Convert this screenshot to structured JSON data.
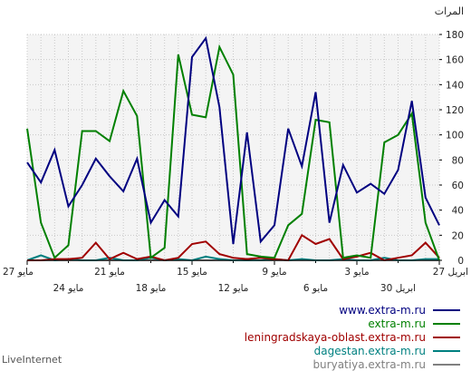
{
  "chart_data": {
    "type": "line",
    "ylabel": "المرات",
    "ylim": [
      0,
      180
    ],
    "yticks": [
      0,
      20,
      40,
      60,
      80,
      100,
      120,
      140,
      160,
      180
    ],
    "x_count": 31,
    "x_tick_labels_top": [
      {
        "index": 0,
        "text": "27 مايو"
      },
      {
        "index": 6,
        "text": "21 مايو"
      },
      {
        "index": 12,
        "text": "15 مايو"
      },
      {
        "index": 18,
        "text": "9 مايو"
      },
      {
        "index": 24,
        "text": "3 مايو"
      },
      {
        "index": 30,
        "text": "27 ابريل"
      }
    ],
    "x_tick_labels_bottom": [
      {
        "index": 3,
        "text": "24 مايو"
      },
      {
        "index": 9,
        "text": "18 مايو"
      },
      {
        "index": 15,
        "text": "12 مايو"
      },
      {
        "index": 21,
        "text": "6 مايو"
      },
      {
        "index": 27,
        "text": "30 ابريل"
      }
    ],
    "grid": true,
    "series": [
      {
        "name": "www.extra-m.ru",
        "color": "#000080",
        "values": [
          78,
          62,
          88,
          43,
          60,
          81,
          67,
          55,
          81,
          30,
          48,
          35,
          162,
          177,
          122,
          13,
          102,
          15,
          28,
          105,
          75,
          134,
          30,
          76,
          54,
          61,
          53,
          72,
          127,
          50,
          28
        ]
      },
      {
        "name": "extra-m.ru",
        "color": "#008000",
        "values": [
          105,
          30,
          2,
          12,
          103,
          103,
          95,
          135,
          115,
          2,
          10,
          164,
          116,
          114,
          170,
          148,
          5,
          3,
          2,
          28,
          37,
          112,
          110,
          2,
          4,
          2,
          94,
          100,
          117,
          30,
          0
        ]
      },
      {
        "name": "leningradskaya-oblast.extra-m.ru",
        "color": "#a00000",
        "values": [
          0,
          0,
          1,
          1,
          2,
          14,
          1,
          6,
          1,
          3,
          0,
          2,
          13,
          15,
          5,
          2,
          1,
          2,
          1,
          0,
          20,
          13,
          17,
          1,
          3,
          6,
          0,
          2,
          4,
          14,
          2
        ]
      },
      {
        "name": "dagestan.extra-m.ru",
        "color": "#008080",
        "values": [
          0,
          4,
          0,
          1,
          0,
          0,
          2,
          0,
          0,
          2,
          0,
          1,
          0,
          3,
          1,
          0,
          0,
          0,
          1,
          0,
          1,
          0,
          0,
          1,
          0,
          0,
          2,
          0,
          0,
          1,
          1
        ]
      },
      {
        "name": "buryatiya.extra-m.ru",
        "color": "#808080",
        "values": [
          0,
          0,
          0,
          0,
          0,
          0,
          0,
          0,
          0,
          0,
          0,
          0,
          0,
          0,
          0,
          0,
          0,
          0,
          0,
          0,
          0,
          0,
          0,
          0,
          0,
          0,
          0,
          0,
          0,
          0,
          0
        ]
      }
    ]
  },
  "brand": "LiveInternet"
}
